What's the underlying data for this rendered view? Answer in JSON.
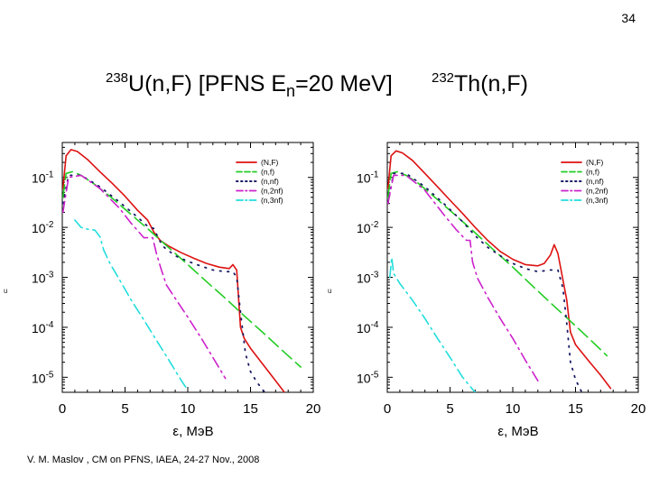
{
  "slide": {
    "page_number": "34",
    "title": {
      "left_isotope_mass": "238",
      "left_reaction": "U(n,F) [PFNS E",
      "subscript": "n",
      "energy_text": "=20 MeV]",
      "right_isotope_mass": "232",
      "right_reaction": "Th(n,F)"
    },
    "footer": "V. M. Maslov ,   CM on PFNS, IAEA, 24-27 Nov., 2008",
    "side_mark": "u"
  },
  "colors": {
    "NF": "#dd1111",
    "nf": "#22cc22",
    "nnf": "#1a1a66",
    "n2nf": "#cc22cc",
    "n3nf": "#22dddd"
  },
  "chart_data": [
    {
      "type": "line",
      "name": "238U(n,F)",
      "y_scale": "log",
      "xlim": [
        0,
        20
      ],
      "ylim": [
        5e-06,
        0.5
      ],
      "xlabel": "ε, MэВ",
      "ylabel": "",
      "xticks": [
        0,
        5,
        10,
        15,
        20
      ],
      "yticks": [
        {
          "value": 0.1,
          "base": "10",
          "exp": "-1"
        },
        {
          "value": 0.01,
          "base": "10",
          "exp": "-2"
        },
        {
          "value": 0.001,
          "base": "10",
          "exp": "-3"
        },
        {
          "value": 0.0001,
          "base": "10",
          "exp": "-4"
        },
        {
          "value": 1e-05,
          "base": "10",
          "exp": "-5"
        }
      ],
      "legend_position": "top-right",
      "series": [
        {
          "name": "(N,F)",
          "style": "solid",
          "color": "#dd1111",
          "x": [
            0.05,
            0.3,
            0.7,
            1.2,
            2,
            3,
            4,
            5,
            6,
            6.8,
            7.3,
            7.8,
            8.5,
            9.5,
            10.5,
            11.5,
            12.5,
            13.3,
            13.6,
            13.9,
            14.2,
            14.5,
            15,
            16,
            17,
            18,
            19
          ],
          "y": [
            0.06,
            0.27,
            0.36,
            0.33,
            0.23,
            0.13,
            0.075,
            0.042,
            0.022,
            0.014,
            0.008,
            0.0055,
            0.0042,
            0.0031,
            0.0024,
            0.0019,
            0.0016,
            0.0015,
            0.0018,
            0.0014,
            0.0001,
            6e-05,
            3.8e-05,
            1.8e-05,
            8.5e-06,
            4e-06,
            1.8e-06
          ]
        },
        {
          "name": "(n,f)",
          "style": "dashed",
          "color": "#22cc22",
          "x": [
            0.05,
            0.3,
            0.8,
            1.5,
            2.5,
            4,
            5.5,
            7,
            8.5,
            10,
            11.5,
            13,
            14.5,
            16,
            17.5,
            19
          ],
          "y": [
            0.04,
            0.12,
            0.13,
            0.11,
            0.075,
            0.038,
            0.018,
            0.0085,
            0.0039,
            0.0018,
            0.00082,
            0.00038,
            0.00017,
            7.8e-05,
            3.5e-05,
            1.6e-05
          ]
        },
        {
          "name": "(n,nf)",
          "style": "dotted",
          "color": "#1a1a66",
          "x": [
            0.05,
            0.5,
            1.5,
            3,
            4.5,
            6,
            6.8,
            7.3,
            7.6,
            8,
            9,
            10,
            11,
            12,
            13,
            13.6,
            13.9,
            14.2,
            14.6,
            15,
            15.5,
            16,
            16.5
          ],
          "y": [
            0.03,
            0.11,
            0.11,
            0.065,
            0.033,
            0.016,
            0.0105,
            0.0095,
            0.0065,
            0.0042,
            0.0027,
            0.0021,
            0.0017,
            0.0014,
            0.0013,
            0.0013,
            0.001,
            0.0002,
            3e-05,
            1.3e-05,
            8e-06,
            5.5e-06,
            4e-06
          ]
        },
        {
          "name": "(n,2nf)",
          "style": "dash-dot",
          "color": "#cc22cc",
          "x": [
            0.05,
            0.5,
            1.5,
            3,
            4.5,
            5.5,
            6.5,
            7.2,
            7.5,
            7.9,
            8.3,
            9,
            10,
            11,
            12,
            13
          ],
          "y": [
            0.02,
            0.1,
            0.11,
            0.06,
            0.025,
            0.012,
            0.0062,
            0.0062,
            0.003,
            0.0014,
            0.0007,
            0.00038,
            0.00016,
            6.5e-05,
            2.5e-05,
            9.5e-06
          ]
        },
        {
          "name": "(n,3nf)",
          "style": "dash-dot",
          "color": "#22dddd",
          "x": [
            1,
            1.5,
            2.0,
            2.6,
            3.0,
            3.3,
            3.8,
            4.5,
            5.5,
            6.5,
            7.5,
            8.5,
            9.5,
            10
          ],
          "y": [
            0.014,
            0.01,
            0.0092,
            0.0088,
            0.0065,
            0.0035,
            0.0019,
            0.00095,
            0.00035,
            0.00014,
            5.5e-05,
            2.2e-05,
            8.5e-06,
            5.5e-06
          ]
        }
      ]
    },
    {
      "type": "line",
      "name": "232Th(n,F)",
      "y_scale": "log",
      "xlim": [
        0,
        20
      ],
      "ylim": [
        5e-06,
        0.5
      ],
      "xlabel": "ε, MэВ",
      "ylabel": "",
      "xticks": [
        0,
        5,
        10,
        15,
        20
      ],
      "yticks": [
        {
          "value": 0.1,
          "base": "10",
          "exp": "-1"
        },
        {
          "value": 0.01,
          "base": "10",
          "exp": "-2"
        },
        {
          "value": 0.001,
          "base": "10",
          "exp": "-3"
        },
        {
          "value": 0.0001,
          "base": "10",
          "exp": "-4"
        },
        {
          "value": 1e-05,
          "base": "10",
          "exp": "-5"
        }
      ],
      "legend_position": "top-right",
      "series": [
        {
          "name": "(N,F)",
          "style": "solid",
          "color": "#dd1111",
          "x": [
            0.05,
            0.3,
            0.7,
            1.2,
            2,
            3,
            4,
            5,
            6,
            7,
            8,
            9,
            10,
            11,
            12,
            12.5,
            13,
            13.3,
            13.6,
            13.9,
            14.3,
            14.6,
            15,
            16,
            17,
            17.8
          ],
          "y": [
            0.06,
            0.27,
            0.34,
            0.31,
            0.22,
            0.12,
            0.065,
            0.035,
            0.019,
            0.01,
            0.0055,
            0.0033,
            0.0023,
            0.0018,
            0.0017,
            0.0019,
            0.0028,
            0.0045,
            0.003,
            0.0012,
            0.00035,
            8e-05,
            4.5e-05,
            2.2e-05,
            1.1e-05,
            6e-06
          ]
        },
        {
          "name": "(n,f)",
          "style": "dashed",
          "color": "#22cc22",
          "x": [
            0.05,
            0.3,
            0.8,
            1.5,
            2.5,
            4,
            5.5,
            7,
            8.5,
            10,
            11.5,
            13,
            14.5,
            16,
            17.5
          ],
          "y": [
            0.04,
            0.12,
            0.13,
            0.11,
            0.075,
            0.036,
            0.017,
            0.0078,
            0.0035,
            0.0016,
            0.0007,
            0.00031,
            0.00014,
            6.2e-05,
            2.7e-05
          ]
        },
        {
          "name": "(n,nf)",
          "style": "dotted",
          "color": "#1a1a66",
          "x": [
            0.05,
            0.5,
            1.5,
            3,
            4.5,
            6,
            7,
            8,
            9,
            10,
            11,
            12,
            13,
            13.6,
            14,
            14.3,
            14.6,
            15,
            15.5
          ],
          "y": [
            0.03,
            0.12,
            0.12,
            0.065,
            0.03,
            0.013,
            0.0068,
            0.004,
            0.0027,
            0.0019,
            0.0015,
            0.0013,
            0.0014,
            0.0014,
            0.0006,
            0.00012,
            2e-05,
            9e-06,
            5e-06
          ]
        },
        {
          "name": "(n,2nf)",
          "style": "dash-dot",
          "color": "#cc22cc",
          "x": [
            0.05,
            0.5,
            1.5,
            3,
            4.5,
            5.5,
            6.3,
            6.6,
            6.8,
            7.2,
            8,
            9,
            10,
            11,
            12
          ],
          "y": [
            0.03,
            0.11,
            0.11,
            0.055,
            0.018,
            0.009,
            0.0055,
            0.0055,
            0.002,
            0.00095,
            0.0004,
            0.00015,
            6e-05,
            2.2e-05,
            8.5e-06
          ]
        },
        {
          "name": "(n,3nf)",
          "style": "dash-dot",
          "color": "#22dddd",
          "x": [
            0.2,
            0.35,
            0.5,
            1,
            2,
            3,
            4,
            5,
            6,
            7,
            7.6
          ],
          "y": [
            0.001,
            0.0025,
            0.0012,
            0.00075,
            0.00035,
            0.00015,
            6e-05,
            2.5e-05,
            1e-05,
            5e-06,
            3e-06
          ]
        }
      ]
    }
  ]
}
